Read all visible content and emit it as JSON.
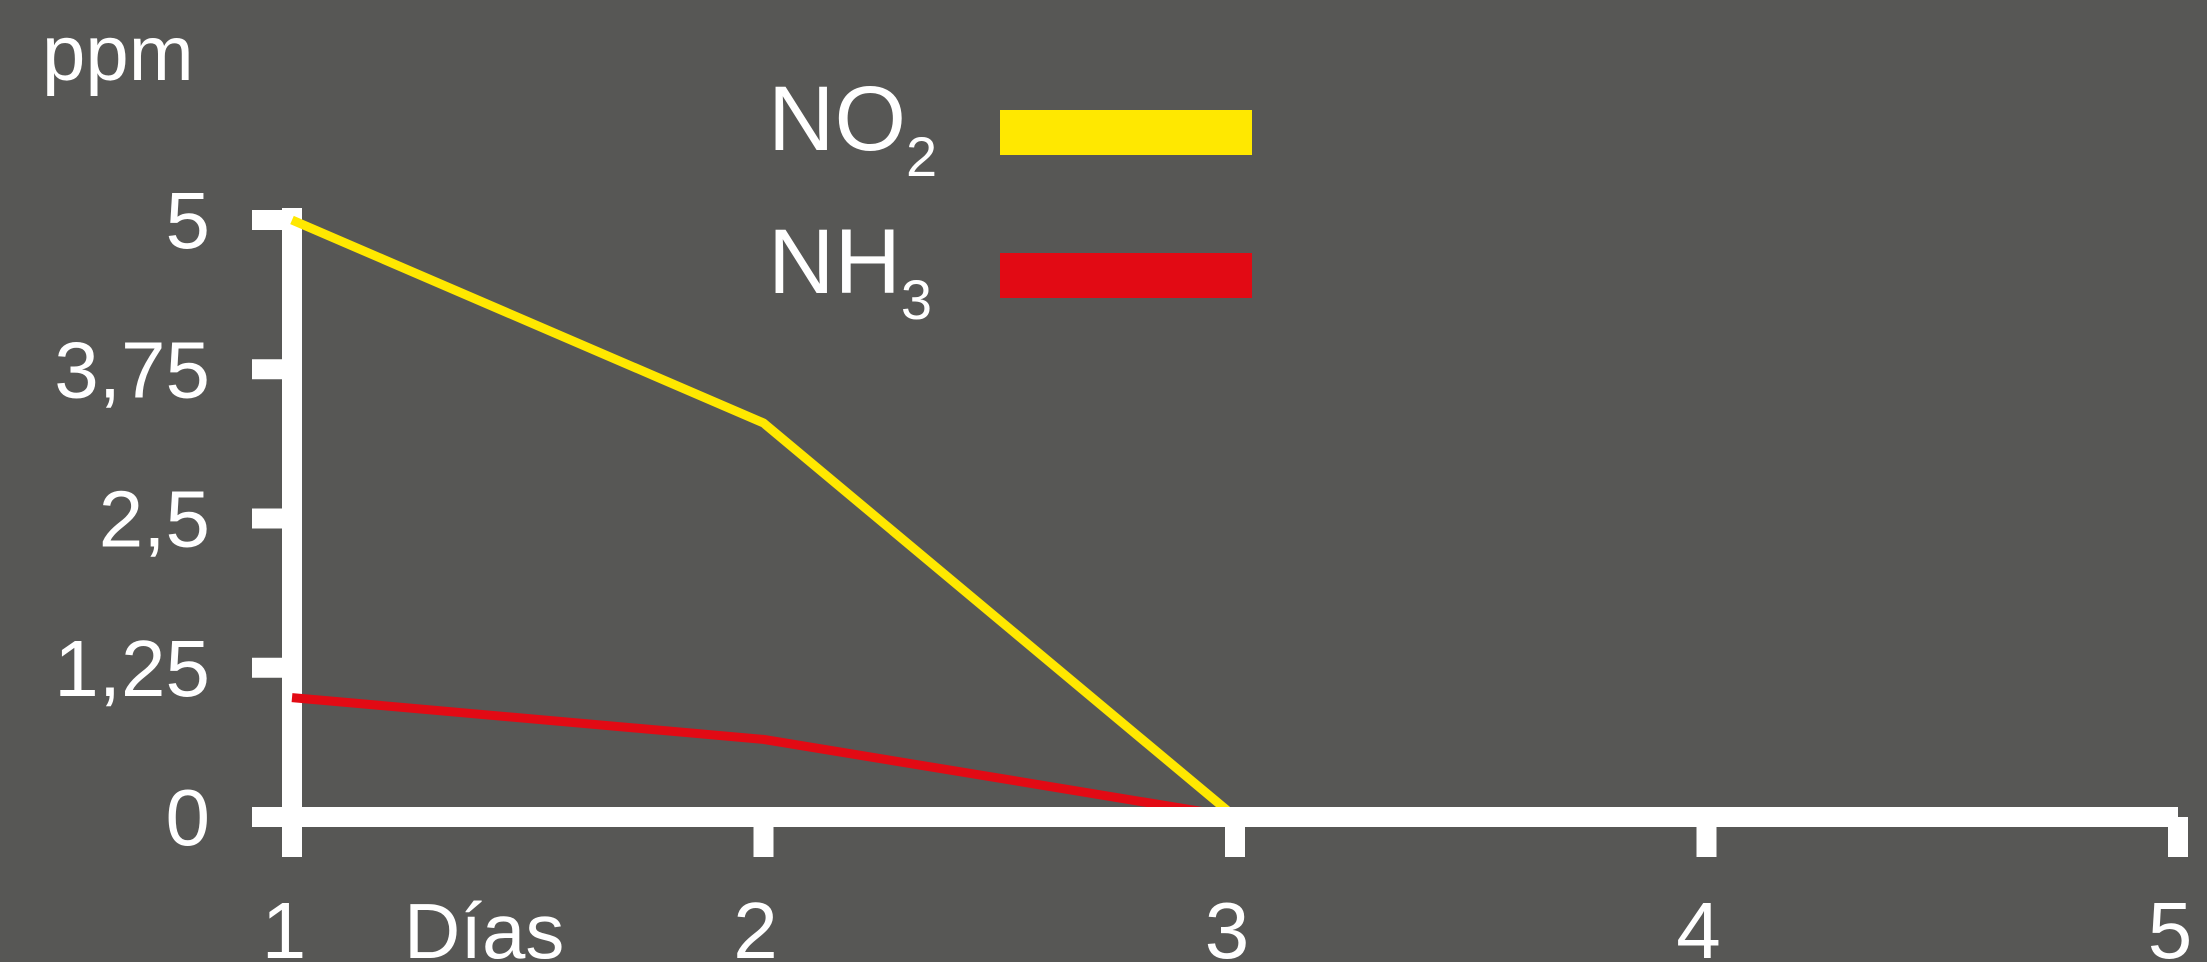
{
  "chart_data": {
    "type": "line",
    "ylabel": "ppm",
    "xlabel": "Días",
    "x": [
      1,
      2,
      3,
      4,
      5
    ],
    "x_ticks": [
      "1",
      "2",
      "3",
      "4",
      "5"
    ],
    "y_ticks": [
      "0",
      "1,25",
      "2,5",
      "3,75",
      "5"
    ],
    "y_tick_values": [
      0,
      1.25,
      2.5,
      3.75,
      5
    ],
    "ylim": [
      0,
      5
    ],
    "xlim": [
      1,
      5
    ],
    "grid": false,
    "legend_position": "top-center",
    "series": [
      {
        "name": "NO2",
        "legend_base": "NO",
        "legend_sub": "2",
        "color": "#ffe800",
        "x": [
          1,
          2,
          3,
          4,
          5
        ],
        "values": [
          5,
          3.3,
          0,
          0,
          0
        ]
      },
      {
        "name": "NH3",
        "legend_base": "NH",
        "legend_sub": "3",
        "color": "#e20a14",
        "x": [
          1,
          2,
          3,
          4,
          5
        ],
        "values": [
          1,
          0.65,
          0,
          0,
          0
        ]
      }
    ],
    "axis_color": "#ffffff",
    "background": "#575755"
  }
}
